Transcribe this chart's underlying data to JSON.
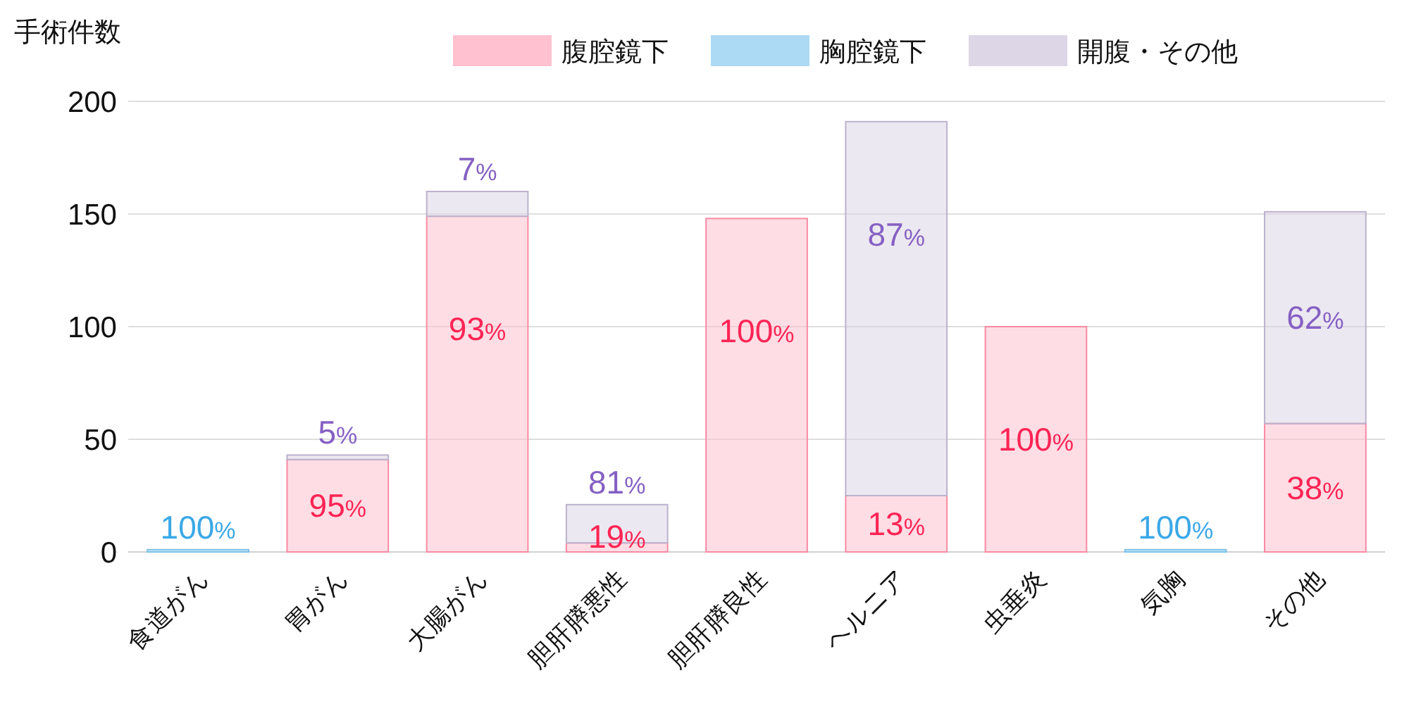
{
  "chart_data": {
    "type": "bar",
    "stacked": true,
    "ylabel": "手術件数",
    "categories": [
      "食道がん",
      "胃がん",
      "大腸がん",
      "胆肝膵悪性",
      "胆肝膵良性",
      "ヘルニア",
      "虫垂炎",
      "気胸",
      "その他"
    ],
    "series": [
      {
        "name": "腹腔鏡下",
        "color": "#ffc1cf",
        "values": [
          0,
          41,
          149,
          4,
          148,
          25,
          100,
          0,
          57
        ]
      },
      {
        "name": "胸腔鏡下",
        "color": "#acdaf5",
        "values": [
          1,
          0,
          0,
          0,
          0,
          0,
          0,
          1,
          0
        ]
      },
      {
        "name": "開腹・その他",
        "color": "#dcd6e6",
        "values": [
          0,
          2,
          11,
          17,
          0,
          166,
          0,
          0,
          94
        ]
      }
    ],
    "annotations": [
      {
        "text": "100%",
        "x": "食道がん",
        "y": 1
      },
      {
        "text": "95%",
        "x": "胃がん",
        "y": 41
      },
      {
        "text": "5%",
        "x": "胃がん",
        "y": 43
      },
      {
        "text": "93%",
        "x": "大腸がん",
        "y": 149
      },
      {
        "text": "7%",
        "x": "大腸がん",
        "y": 160
      },
      {
        "text": "19%",
        "x": "胆肝膵悪性",
        "y": 4
      },
      {
        "text": "81%",
        "x": "胆肝膵悪性",
        "y": 21
      },
      {
        "text": "100%",
        "x": "胆肝膵良性",
        "y": 148
      },
      {
        "text": "13%",
        "x": "ヘルニア",
        "y": 25
      },
      {
        "text": "87%",
        "x": "ヘルニア",
        "y": 191
      },
      {
        "text": "100%",
        "x": "虫垂炎",
        "y": 100
      },
      {
        "text": "100%",
        "x": "気胸",
        "y": 1
      },
      {
        "text": "38%",
        "x": "その他",
        "y": 57
      },
      {
        "text": "62%",
        "x": "その他",
        "y": 151
      }
    ],
    "ylim": [
      0,
      200
    ],
    "yticks": [
      0,
      50,
      100,
      150,
      200
    ],
    "grid": "y",
    "legend": "top"
  }
}
